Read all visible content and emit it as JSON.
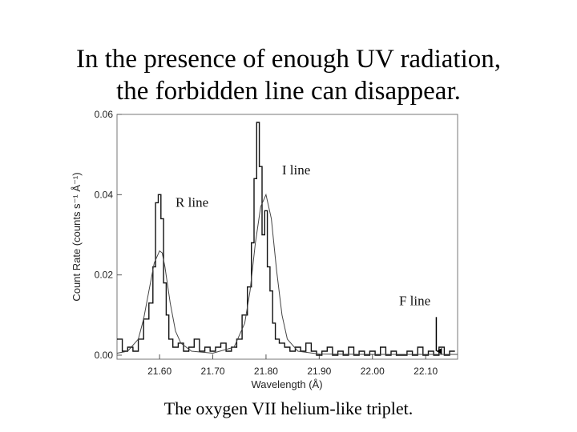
{
  "slide": {
    "title_line1": "In the presence of enough UV radiation,",
    "title_line2": "the forbidden line can disappear.",
    "caption": "The oxygen VII helium-like triplet."
  },
  "chart_data": {
    "type": "line",
    "xlabel": "Wavelength (Å)",
    "ylabel": "Count Rate (counts s⁻¹ Å⁻¹)",
    "xlim": [
      21.52,
      22.16
    ],
    "ylim": [
      -0.001,
      0.06
    ],
    "x_ticks": [
      21.6,
      21.7,
      21.8,
      21.9,
      22.0,
      22.1
    ],
    "x_tick_labels": [
      "21.60",
      "21.70",
      "21.80",
      "21.90",
      "22.00",
      "22.10"
    ],
    "y_ticks": [
      0.0,
      0.02,
      0.04,
      0.06
    ],
    "y_tick_labels": [
      "0.00",
      "0.02",
      "0.04",
      "0.06"
    ],
    "annotations": [
      {
        "text": "R line",
        "x": 21.63,
        "y": 0.037
      },
      {
        "text": "I line",
        "x": 21.83,
        "y": 0.045
      },
      {
        "text": "F line",
        "x": 22.05,
        "y": 0.0125
      }
    ],
    "arrow": {
      "x": 22.12,
      "y_from": 0.0095,
      "y_to": 0.001
    },
    "series": [
      {
        "style": "histogram",
        "x": [
          21.525,
          21.535,
          21.545,
          21.555,
          21.565,
          21.575,
          21.585,
          21.59,
          21.595,
          21.6,
          21.605,
          21.61,
          21.615,
          21.62,
          21.63,
          21.64,
          21.65,
          21.66,
          21.67,
          21.68,
          21.69,
          21.7,
          21.71,
          21.72,
          21.73,
          21.74,
          21.75,
          21.76,
          21.77,
          21.775,
          21.78,
          21.785,
          21.79,
          21.795,
          21.8,
          21.805,
          21.81,
          21.815,
          21.82,
          21.83,
          21.84,
          21.85,
          21.86,
          21.87,
          21.88,
          21.89,
          21.9,
          21.91,
          21.92,
          21.93,
          21.94,
          21.95,
          21.96,
          21.97,
          21.98,
          21.99,
          22.0,
          22.01,
          22.02,
          22.03,
          22.04,
          22.05,
          22.06,
          22.07,
          22.08,
          22.09,
          22.1,
          22.11,
          22.12,
          22.13,
          22.14,
          22.15
        ],
        "y": [
          0.004,
          0.001,
          0.002,
          0.001,
          0.004,
          0.009,
          0.013,
          0.022,
          0.038,
          0.04,
          0.034,
          0.018,
          0.01,
          0.004,
          0.002,
          0.003,
          0.001,
          0.002,
          0.004,
          0.001,
          0.002,
          0.001,
          0.002,
          0.003,
          0.001,
          0.002,
          0.004,
          0.01,
          0.017,
          0.028,
          0.044,
          0.058,
          0.047,
          0.03,
          0.036,
          0.022,
          0.016,
          0.008,
          0.004,
          0.003,
          0.002,
          0.001,
          0.002,
          0.001,
          0.003,
          0.001,
          0.0,
          0.001,
          0.002,
          0.0,
          0.001,
          0.0,
          0.002,
          0.0,
          0.001,
          0.0,
          0.001,
          0.0,
          0.002,
          0.0,
          0.001,
          0.0,
          0.0,
          0.001,
          0.0,
          0.002,
          0.0,
          0.001,
          0.0,
          0.002,
          0.0,
          0.001
        ]
      },
      {
        "style": "model",
        "x": [
          21.52,
          21.54,
          21.56,
          21.57,
          21.58,
          21.59,
          21.6,
          21.605,
          21.61,
          21.62,
          21.63,
          21.64,
          21.66,
          21.7,
          21.74,
          21.76,
          21.77,
          21.78,
          21.79,
          21.8,
          21.81,
          21.82,
          21.83,
          21.84,
          21.86,
          21.9,
          22.0,
          22.16
        ],
        "y": [
          0.0005,
          0.001,
          0.004,
          0.009,
          0.016,
          0.023,
          0.026,
          0.0255,
          0.022,
          0.013,
          0.006,
          0.003,
          0.001,
          0.0005,
          0.002,
          0.008,
          0.016,
          0.028,
          0.037,
          0.04,
          0.034,
          0.021,
          0.01,
          0.004,
          0.001,
          0.0003,
          0.0002,
          0.0002
        ]
      }
    ]
  }
}
